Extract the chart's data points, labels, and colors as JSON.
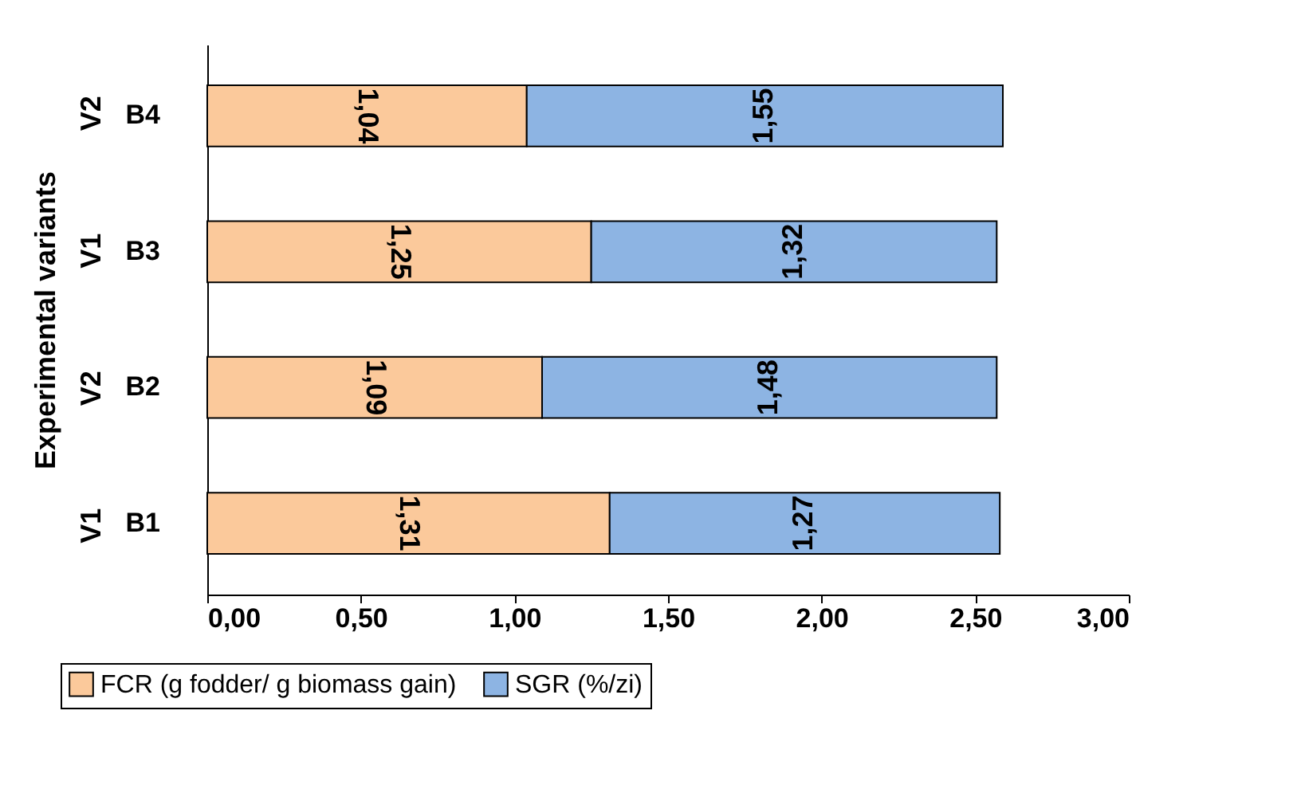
{
  "chart_data": {
    "type": "bar",
    "orientation": "horizontal",
    "stacked": true,
    "ylabel": "Experimental variants",
    "categories": [
      "B4",
      "B3",
      "B2",
      "B1"
    ],
    "series": [
      {
        "name": "FCR  (g fodder/ g biomass gain)",
        "color": "#fbc99b",
        "values": [
          1.04,
          1.25,
          1.09,
          1.31
        ],
        "value_labels": [
          "1,04",
          "1,25",
          "1,09",
          "1,31"
        ]
      },
      {
        "name": "SGR (%/zi)",
        "color": "#8db4e3",
        "values": [
          1.55,
          1.32,
          1.48,
          1.27
        ],
        "value_labels": [
          "1,55",
          "1,32",
          "1,48",
          "1,27"
        ]
      }
    ],
    "annotations": [
      "V2",
      "V1",
      "V2",
      "V1"
    ],
    "xlim": [
      0,
      3
    ],
    "xticks": [
      {
        "value": 0,
        "label": "0,00"
      },
      {
        "value": 0.5,
        "label": "0,50"
      },
      {
        "value": 1,
        "label": "1,00"
      },
      {
        "value": 1.5,
        "label": "1,50"
      },
      {
        "value": 2,
        "label": "2,00"
      },
      {
        "value": 2.5,
        "label": "2,50"
      },
      {
        "value": 3,
        "label": "3,00"
      }
    ],
    "grid": false,
    "legend": "bottom"
  }
}
